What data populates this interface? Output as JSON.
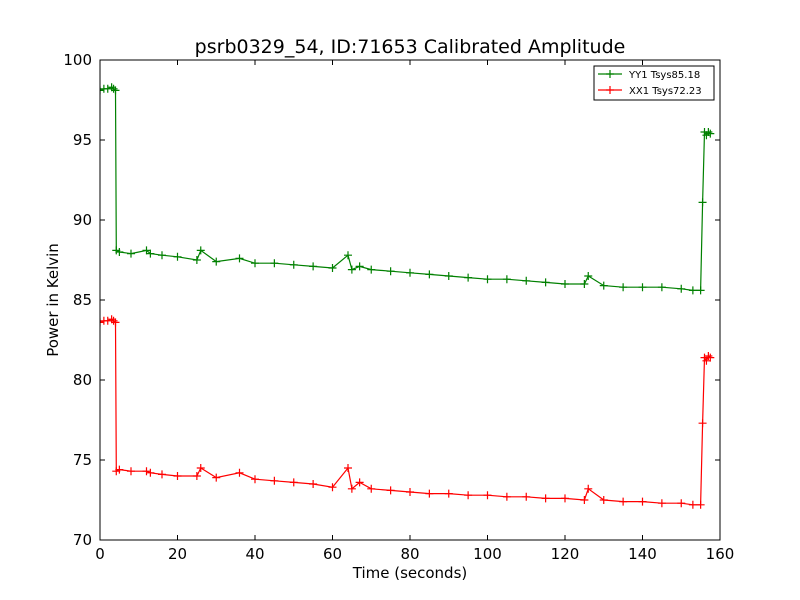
{
  "chart_data": {
    "type": "line",
    "title": "psrb0329_54, ID:71653 Calibrated Amplitude",
    "xlabel": "Time (seconds)",
    "ylabel": "Power in Kelvin",
    "xlim": [
      0,
      160
    ],
    "ylim": [
      70,
      100
    ],
    "xticks": [
      "0",
      "20",
      "40",
      "60",
      "80",
      "100",
      "120",
      "140",
      "160"
    ],
    "yticks": [
      "70",
      "75",
      "80",
      "85",
      "90",
      "95",
      "100"
    ],
    "grid": false,
    "legend_position": "top-right",
    "marker": "plus",
    "series": [
      {
        "name": "YY1 Tsys85.18",
        "color": "#008000",
        "x": [
          0,
          1,
          2,
          3,
          3.5,
          4,
          4.2,
          5,
          8,
          12,
          13,
          16,
          20,
          25,
          26,
          30,
          36,
          40,
          45,
          50,
          55,
          60,
          64,
          65,
          67,
          70,
          75,
          80,
          85,
          90,
          95,
          100,
          105,
          110,
          115,
          120,
          125,
          126,
          130,
          135,
          140,
          145,
          150,
          153,
          155,
          155.5,
          156,
          156.5,
          157,
          157.5
        ],
        "values": [
          98.1,
          98.2,
          98.2,
          98.3,
          98.2,
          98.1,
          88.1,
          88.0,
          87.9,
          88.1,
          87.9,
          87.8,
          87.7,
          87.5,
          88.1,
          87.4,
          87.6,
          87.3,
          87.3,
          87.2,
          87.1,
          87.0,
          87.8,
          86.9,
          87.1,
          86.9,
          86.8,
          86.7,
          86.6,
          86.5,
          86.4,
          86.3,
          86.3,
          86.2,
          86.1,
          86.0,
          86.0,
          86.5,
          85.9,
          85.8,
          85.8,
          85.8,
          85.7,
          85.6,
          85.6,
          91.1,
          95.5,
          95.3,
          95.5,
          95.4
        ]
      },
      {
        "name": "XX1 Tsys72.23",
        "color": "#ff0000",
        "x": [
          0,
          1,
          2,
          3,
          3.5,
          4,
          4.2,
          5,
          8,
          12,
          13,
          16,
          20,
          25,
          26,
          30,
          36,
          40,
          45,
          50,
          55,
          60,
          64,
          65,
          67,
          70,
          75,
          80,
          85,
          90,
          95,
          100,
          105,
          110,
          115,
          120,
          125,
          126,
          130,
          135,
          140,
          145,
          150,
          153,
          155,
          155.5,
          156,
          156.5,
          157,
          157.5
        ],
        "values": [
          83.6,
          83.7,
          83.7,
          83.8,
          83.7,
          83.6,
          74.3,
          74.4,
          74.3,
          74.3,
          74.2,
          74.1,
          74.0,
          74.0,
          74.5,
          73.9,
          74.2,
          73.8,
          73.7,
          73.6,
          73.5,
          73.3,
          74.5,
          73.2,
          73.6,
          73.2,
          73.1,
          73.0,
          72.9,
          72.9,
          72.8,
          72.8,
          72.7,
          72.7,
          72.6,
          72.6,
          72.5,
          73.2,
          72.5,
          72.4,
          72.4,
          72.3,
          72.3,
          72.2,
          72.2,
          77.3,
          81.4,
          81.2,
          81.5,
          81.4
        ]
      }
    ]
  }
}
